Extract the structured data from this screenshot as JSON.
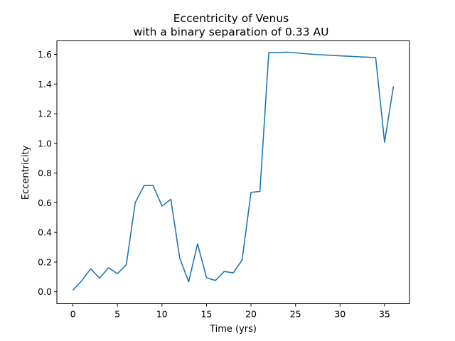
{
  "chart_data": {
    "type": "line",
    "title": "Eccentricity of Venus",
    "subtitle": "with a binary separation of 0.33 AU",
    "xlabel": "Time (yrs)",
    "ylabel": "Eccentricity",
    "xlim": [
      -1.8,
      37.8
    ],
    "ylim": [
      -0.0805,
      1.691
    ],
    "xticks": [
      0,
      5,
      10,
      15,
      20,
      25,
      30,
      35
    ],
    "xtick_labels": [
      "0",
      "5",
      "10",
      "15",
      "20",
      "25",
      "30",
      "35"
    ],
    "yticks": [
      0.0,
      0.2,
      0.4,
      0.6,
      0.8,
      1.0,
      1.2,
      1.4,
      1.6
    ],
    "ytick_labels": [
      "0.0",
      "0.2",
      "0.4",
      "0.6",
      "0.8",
      "1.0",
      "1.2",
      "1.4",
      "1.6"
    ],
    "grid": false,
    "line_color": "#1f77b4",
    "series": [
      {
        "x": [
          0,
          1,
          2,
          3,
          4,
          5,
          6,
          7,
          8,
          9,
          10,
          11,
          12,
          13,
          14,
          15,
          16,
          17,
          18,
          19,
          20,
          21,
          22,
          23,
          24,
          27,
          30,
          34,
          35,
          36
        ],
        "values": [
          0.01,
          0.075,
          0.155,
          0.092,
          0.162,
          0.122,
          0.183,
          0.6,
          0.716,
          0.716,
          0.578,
          0.623,
          0.226,
          0.067,
          0.323,
          0.095,
          0.076,
          0.137,
          0.127,
          0.214,
          0.67,
          0.676,
          1.612,
          1.611,
          1.615,
          1.6,
          1.59,
          1.578,
          1.008,
          1.385
        ]
      }
    ]
  }
}
